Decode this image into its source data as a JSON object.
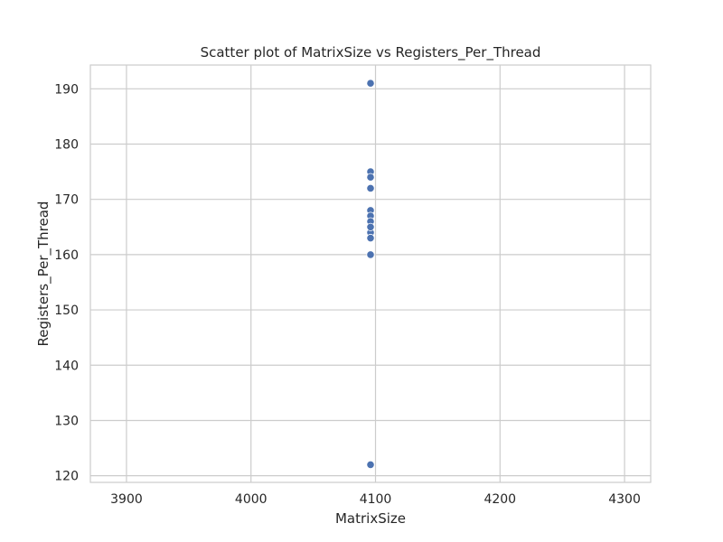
{
  "chart_data": {
    "type": "scatter",
    "title": "Scatter plot of MatrixSize vs Registers_Per_Thread",
    "xlabel": "MatrixSize",
    "ylabel": "Registers_Per_Thread",
    "xlim": [
      3871,
      4321
    ],
    "ylim": [
      118.8,
      194.3
    ],
    "xticks": [
      3900,
      4000,
      4100,
      4200,
      4300
    ],
    "yticks": [
      120,
      130,
      140,
      150,
      160,
      170,
      180,
      190
    ],
    "grid": true,
    "legend": "none",
    "point_color": "#4c72b0",
    "series": [
      {
        "x": [
          4096,
          4096,
          4096,
          4096,
          4096,
          4096,
          4096,
          4096,
          4096,
          4096,
          4096,
          4096
        ],
        "y": [
          191,
          175,
          174,
          172,
          168,
          167,
          166,
          164,
          163,
          160,
          122,
          165
        ]
      }
    ]
  }
}
